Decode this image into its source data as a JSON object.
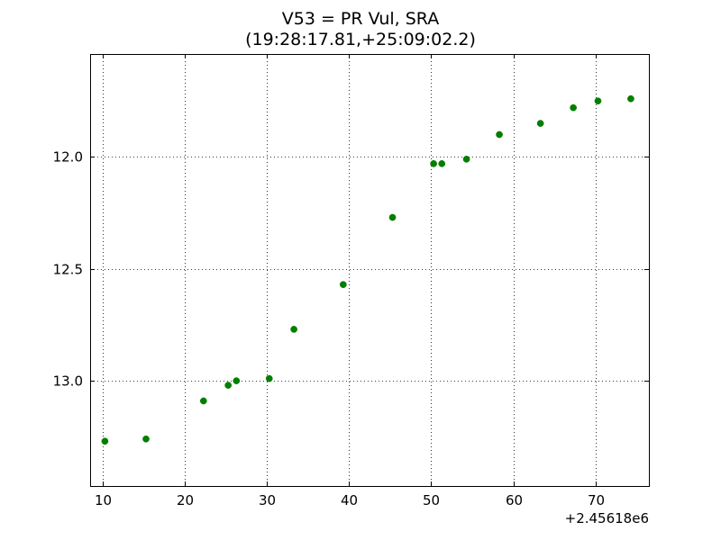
{
  "chart_data": {
    "type": "scatter",
    "title": "V53 = PR Vul, SRA",
    "subtitle": "(19:28:17.81,+25:09:02.2)",
    "xlabel": "",
    "ylabel": "",
    "x_offset_label": "+2.45618e6",
    "xlim": [
      8.5,
      76.5
    ],
    "ylim": [
      13.47,
      11.54
    ],
    "y_inverted": true,
    "x_ticks": [
      10,
      20,
      30,
      40,
      50,
      60,
      70
    ],
    "x_tick_labels": [
      "10",
      "20",
      "30",
      "40",
      "50",
      "60",
      "70"
    ],
    "y_ticks": [
      12.0,
      12.5,
      13.0
    ],
    "y_tick_labels": [
      "12.0",
      "12.5",
      "13.0"
    ],
    "grid": true,
    "marker_color": "#007f00",
    "series": [
      {
        "x": [
          10.3,
          15.3,
          22.3,
          25.3,
          26.3,
          30.3,
          33.3,
          39.3,
          45.3,
          50.3,
          51.3,
          54.3,
          58.3,
          63.3,
          67.3,
          70.3,
          74.3
        ],
        "y": [
          13.27,
          13.26,
          13.09,
          13.02,
          13.0,
          12.99,
          12.77,
          12.57,
          12.27,
          12.03,
          12.03,
          12.01,
          11.9,
          11.85,
          11.78,
          11.75,
          11.74
        ]
      }
    ]
  }
}
